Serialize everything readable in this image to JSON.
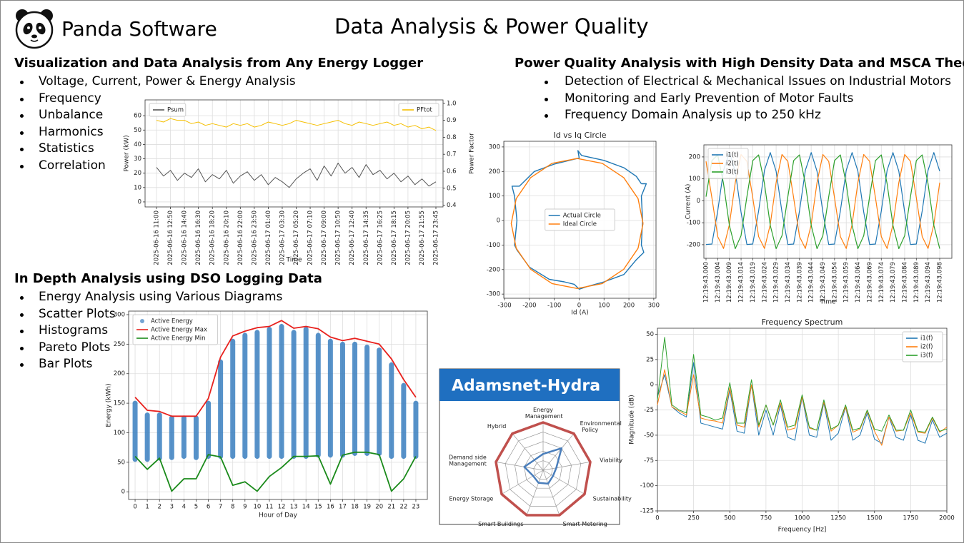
{
  "header": {
    "brand": "Panda Software",
    "title": "Data Analysis & Power Quality"
  },
  "sections": [
    {
      "heading": "Visualization and Data Analysis from Any Energy Logger",
      "bullets": [
        "Voltage, Current, Power & Energy Analysis",
        "Frequency",
        "Unbalance",
        "Harmonics",
        "Statistics",
        "Correlation"
      ]
    },
    {
      "heading": "Power Quality Analysis with High Density Data and MSCA Theory",
      "bullets": [
        "Detection of Electrical & Mechanical Issues on Industrial Motors",
        "Monitoring and Early Prevention of Motor Faults",
        "Frequency Domain Analysis up to 250 kHz"
      ]
    },
    {
      "heading": "In Depth Analysis using DSO Logging Data",
      "bullets": [
        "Energy Analysis using Various Diagrams",
        "Scatter Plots",
        "Histograms",
        "Pareto Plots",
        "Bar Plots"
      ]
    }
  ],
  "chart_data": [
    {
      "type": "line",
      "xlabel": "Time",
      "ylabel": "Power (kW)",
      "y2label": "Power Factor",
      "categories": [
        "2025-06-16 11:00",
        null,
        "2025-06-16 12:50",
        null,
        "2025-06-16 14:40",
        null,
        "2025-06-16 16:30",
        null,
        "2025-06-16 18:20",
        null,
        "2025-06-16 20:10",
        null,
        "2025-06-16 22:00",
        null,
        "2025-06-16 23:50",
        null,
        "2025-06-17 01:40",
        null,
        "2025-06-17 03:30",
        null,
        "2025-06-17 05:20",
        null,
        "2025-06-17 07:10",
        null,
        "2025-06-17 09:00",
        null,
        "2025-06-17 10:50",
        null,
        "2025-06-17 12:40",
        null,
        "2025-06-17 14:35",
        null,
        "2025-06-17 16:25",
        null,
        "2025-06-17 18:15",
        null,
        "2025-06-17 20:05",
        null,
        "2025-06-17 21:55",
        null,
        "2025-06-17 23:45"
      ],
      "series": [
        {
          "name": "Psum",
          "color": "#555555",
          "values": [
            24,
            18,
            22,
            15,
            20,
            17,
            23,
            14,
            19,
            16,
            22,
            13,
            18,
            21,
            15,
            19,
            12,
            17,
            14,
            10,
            16,
            20,
            23,
            15,
            25,
            18,
            27,
            20,
            24,
            17,
            26,
            19,
            22,
            16,
            20,
            14,
            18,
            12,
            16,
            11,
            14
          ]
        },
        {
          "name": "PFtot",
          "color": "#f5bf00",
          "axis": "y2",
          "values": [
            0.9,
            0.89,
            0.91,
            0.9,
            0.9,
            0.88,
            0.89,
            0.87,
            0.88,
            0.87,
            0.86,
            0.88,
            0.87,
            0.88,
            0.86,
            0.87,
            0.89,
            0.88,
            0.87,
            0.88,
            0.9,
            0.89,
            0.88,
            0.87,
            0.88,
            0.89,
            0.9,
            0.88,
            0.87,
            0.89,
            0.88,
            0.87,
            0.88,
            0.89,
            0.87,
            0.88,
            0.86,
            0.87,
            0.85,
            0.86,
            0.84
          ]
        }
      ],
      "ylim": [
        -3.5,
        71
      ],
      "yticks": [
        0,
        10,
        20,
        30,
        40,
        50,
        60
      ],
      "y2lim": [
        0.39,
        1.02
      ],
      "y2ticks": [
        0.4,
        0.5,
        0.6,
        0.7,
        0.8,
        0.9,
        {
          "value": 1,
          "label": "1.0"
        }
      ],
      "grid": true,
      "legend": "upper left"
    },
    {
      "type": "line",
      "title": "Id vs Iq Circle",
      "xlabel": "Id (A)",
      "series": [
        {
          "name": "Actual Circle",
          "color": "#1f77b4",
          "x": [
            250,
            230,
            180,
            100,
            10,
            -5,
            0,
            -100,
            -180,
            -240,
            -270,
            -260,
            -250,
            -260,
            -250,
            -200,
            -120,
            -60,
            -20,
            0,
            30,
            100,
            180,
            230,
            260,
            250,
            255,
            250,
            270,
            250
          ],
          "values": [
            150,
            180,
            215,
            245,
            265,
            285,
            255,
            230,
            200,
            140,
            140,
            100,
            0,
            -100,
            -120,
            -190,
            -240,
            -250,
            -260,
            -280,
            -270,
            -250,
            -220,
            -160,
            -130,
            -100,
            0,
            100,
            150,
            150
          ]
        },
        {
          "name": "Ideal Circle",
          "color": "#ff7f0e",
          "x": [
            257,
            237,
            179,
            93,
            -8,
            -109,
            -195,
            -253,
            -273,
            -253,
            -195,
            -109,
            -8,
            93,
            179,
            237,
            257
          ],
          "values": [
            -12,
            89,
            175,
            233,
            253,
            233,
            175,
            89,
            -12,
            -113,
            -199,
            -257,
            -277,
            -257,
            -199,
            -113,
            -12
          ]
        }
      ],
      "xlim": [
        -303,
        309
      ],
      "xticks": [
        -300,
        -200,
        -100,
        0,
        100,
        200,
        300
      ],
      "ylim": [
        -317,
        323
      ],
      "yticks": [
        -300,
        -200,
        -100,
        0,
        100,
        200,
        300
      ],
      "grid": true,
      "legend": "center"
    },
    {
      "type": "line",
      "xlabel": "Time",
      "ylabel": "Current (A)",
      "categories": [
        "12:19:43.000",
        null,
        "12:19:43.004",
        null,
        "12:19:43.009",
        null,
        "12:19:43.014",
        null,
        "12:19:43.019",
        null,
        "12:19:43.024",
        null,
        "12:19:43.029",
        null,
        "12:19:43.034",
        null,
        "12:19:43.039",
        null,
        "12:19:43.044",
        null,
        "12:19:43.049",
        null,
        "12:19:43.054",
        null,
        "12:19:43.059",
        null,
        "12:19:43.064",
        null,
        "12:19:43.069",
        null,
        "12:19:43.074",
        null,
        "12:19:43.079",
        null,
        "12:19:43.084",
        null,
        "12:19:43.089",
        null,
        "12:19:43.094",
        null,
        "12:19:43.098"
      ],
      "series": [
        {
          "name": "i1(t)",
          "color": "#1f77b4",
          "values": [
            -199,
            -197,
            -46,
            139,
            220,
            135,
            -52,
            -199,
            -197,
            -46,
            139,
            220,
            135,
            -52,
            -199,
            -197,
            -46,
            139,
            220,
            135,
            -52,
            -199,
            -197,
            -46,
            139,
            220,
            135,
            -52,
            -199,
            -197,
            -46,
            139,
            220,
            135,
            -52,
            -199,
            -197,
            -46,
            139,
            220,
            135
          ]
        },
        {
          "name": "i2(t)",
          "color": "#ff7f0e",
          "values": [
            180,
            14,
            -163,
            -217,
            -108,
            83,
            211,
            180,
            14,
            -163,
            -217,
            -108,
            83,
            211,
            180,
            14,
            -163,
            -217,
            -108,
            83,
            211,
            180,
            14,
            -163,
            -217,
            -108,
            83,
            211,
            180,
            14,
            -163,
            -217,
            -108,
            83,
            211,
            180,
            14,
            -163,
            -217,
            -108,
            83
          ]
        },
        {
          "name": "i3(t)",
          "color": "#2ca02c",
          "values": [
            19,
            183,
            209,
            78,
            -112,
            -218,
            -159,
            19,
            183,
            209,
            78,
            -112,
            -218,
            -159,
            19,
            183,
            209,
            78,
            -112,
            -218,
            -159,
            19,
            183,
            209,
            78,
            -112,
            -218,
            -159,
            19,
            183,
            209,
            78,
            -112,
            -218,
            -159,
            19,
            183,
            209,
            78,
            -112,
            -218
          ]
        }
      ],
      "ylim": [
        -262,
        255
      ],
      "yticks": [
        -200,
        -100,
        0,
        100,
        200
      ],
      "grid": true,
      "legend": "upper left"
    },
    {
      "type": "line",
      "xlabel": "Hour of Day",
      "ylabel": "Energy (kWh)",
      "x": [
        0,
        1,
        2,
        3,
        4,
        5,
        6,
        7,
        8,
        9,
        10,
        11,
        12,
        13,
        14,
        15,
        16,
        17,
        18,
        19,
        20,
        21,
        22,
        23
      ],
      "series": [
        {
          "name": "Active Energy",
          "color": "#3a7fc0",
          "low": [
            55,
            55,
            57,
            58,
            60,
            58,
            60,
            60,
            60,
            60,
            60,
            60,
            60,
            60,
            60,
            62,
            62,
            62,
            65,
            65,
            65,
            60,
            60,
            60
          ],
          "high": [
            150,
            130,
            130,
            125,
            125,
            125,
            150,
            220,
            255,
            265,
            270,
            275,
            280,
            270,
            275,
            265,
            255,
            250,
            250,
            245,
            240,
            215,
            180,
            150
          ]
        },
        {
          "name": "Active Energy Max",
          "color": "#e8211d",
          "values": [
            160,
            138,
            136,
            128,
            128,
            128,
            158,
            228,
            264,
            272,
            278,
            280,
            290,
            277,
            280,
            276,
            262,
            256,
            260,
            255,
            250,
            225,
            190,
            160
          ]
        },
        {
          "name": "Active Energy Min",
          "color": "#1a8a1a",
          "values": [
            60,
            38,
            57,
            1,
            22,
            22,
            63,
            59,
            11,
            17,
            1,
            26,
            41,
            60,
            60,
            61,
            13,
            62,
            67,
            67,
            63,
            1,
            22,
            60
          ]
        }
      ],
      "xlim": [
        -0.53,
        23.94
      ],
      "xticks": [
        0,
        1,
        2,
        3,
        4,
        5,
        6,
        7,
        8,
        9,
        10,
        11,
        12,
        13,
        14,
        15,
        16,
        17,
        18,
        19,
        20,
        21,
        22,
        23
      ],
      "ylim": [
        -13,
        306
      ],
      "yticks": [
        0,
        50,
        100,
        150,
        200,
        250,
        300
      ],
      "grid": true,
      "legend": "upper left"
    },
    {
      "type": "radar",
      "title": "Adamsnet-Hydra",
      "categories": [
        "Energy Management",
        "Environmental Policy",
        "Viability",
        "Sustainability",
        "Smart Metering",
        "Smart Buildings",
        "Energy Storage",
        "Demand side Management",
        "Hybrid"
      ],
      "series": [
        {
          "color": "#c0504d",
          "values": [
            5,
            5,
            5,
            5,
            5,
            5,
            5,
            5,
            5
          ]
        },
        {
          "color": "#4a7ebb",
          "values": [
            1.7,
            3.0,
            1.4,
            1.2,
            1.5,
            1.4,
            1.2,
            2.0,
            1.4
          ]
        }
      ],
      "rlim": [
        0,
        5
      ],
      "rticks": [
        1,
        2,
        3,
        4,
        5
      ]
    },
    {
      "type": "line",
      "title": "Frequency Spectrum",
      "xlabel": "Frequency [Hz]",
      "ylabel": "Magnitude (dB)",
      "x": [
        0,
        50,
        100,
        150,
        200,
        250,
        300,
        350,
        400,
        450,
        500,
        550,
        600,
        650,
        700,
        750,
        800,
        850,
        900,
        950,
        1000,
        1050,
        1100,
        1150,
        1200,
        1250,
        1300,
        1350,
        1400,
        1450,
        1500,
        1550,
        1600,
        1650,
        1700,
        1750,
        1800,
        1850,
        1900,
        1950,
        2000
      ],
      "series": [
        {
          "name": "i1(f)",
          "color": "#1f77b4",
          "values": [
            -12,
            10,
            -22,
            -28,
            -32,
            22,
            -38,
            -40,
            -42,
            -44,
            -5,
            -46,
            -48,
            0,
            -50,
            -25,
            -50,
            -20,
            -52,
            -55,
            -12,
            -50,
            -52,
            -18,
            -55,
            -48,
            -22,
            -55,
            -50,
            -28,
            -54,
            -58,
            -32,
            -52,
            -55,
            -30,
            -55,
            -58,
            -35,
            -52,
            -48
          ]
        },
        {
          "name": "i2(f)",
          "color": "#ff7f0e",
          "values": [
            -20,
            15,
            -22,
            -26,
            -30,
            10,
            -33,
            -35,
            -36,
            -38,
            -3,
            -40,
            -42,
            0,
            -42,
            -20,
            -40,
            -18,
            -45,
            -43,
            -12,
            -43,
            -45,
            -17,
            -46,
            -40,
            -22,
            -47,
            -44,
            -26,
            -46,
            -60,
            -32,
            -46,
            -45,
            -28,
            -47,
            -48,
            -33,
            -47,
            -42
          ]
        },
        {
          "name": "i3(f)",
          "color": "#2ca02c",
          "values": [
            -15,
            47,
            -20,
            -25,
            -28,
            30,
            -30,
            -32,
            -35,
            -33,
            2,
            -38,
            -38,
            5,
            -40,
            -20,
            -40,
            -15,
            -42,
            -40,
            -10,
            -42,
            -45,
            -15,
            -44,
            -40,
            -20,
            -45,
            -43,
            -25,
            -44,
            -46,
            -30,
            -45,
            -45,
            -25,
            -46,
            -47,
            -32,
            -46,
            -44
          ]
        }
      ],
      "xlim": [
        0,
        2000
      ],
      "xticks": [
        0,
        250,
        500,
        750,
        1000,
        1250,
        1500,
        1750,
        2000
      ],
      "ylim": [
        -125,
        56
      ],
      "yticks": [
        -125,
        -100,
        -75,
        -50,
        -25,
        0,
        25,
        50
      ],
      "grid": true,
      "legend": "upper right"
    }
  ]
}
